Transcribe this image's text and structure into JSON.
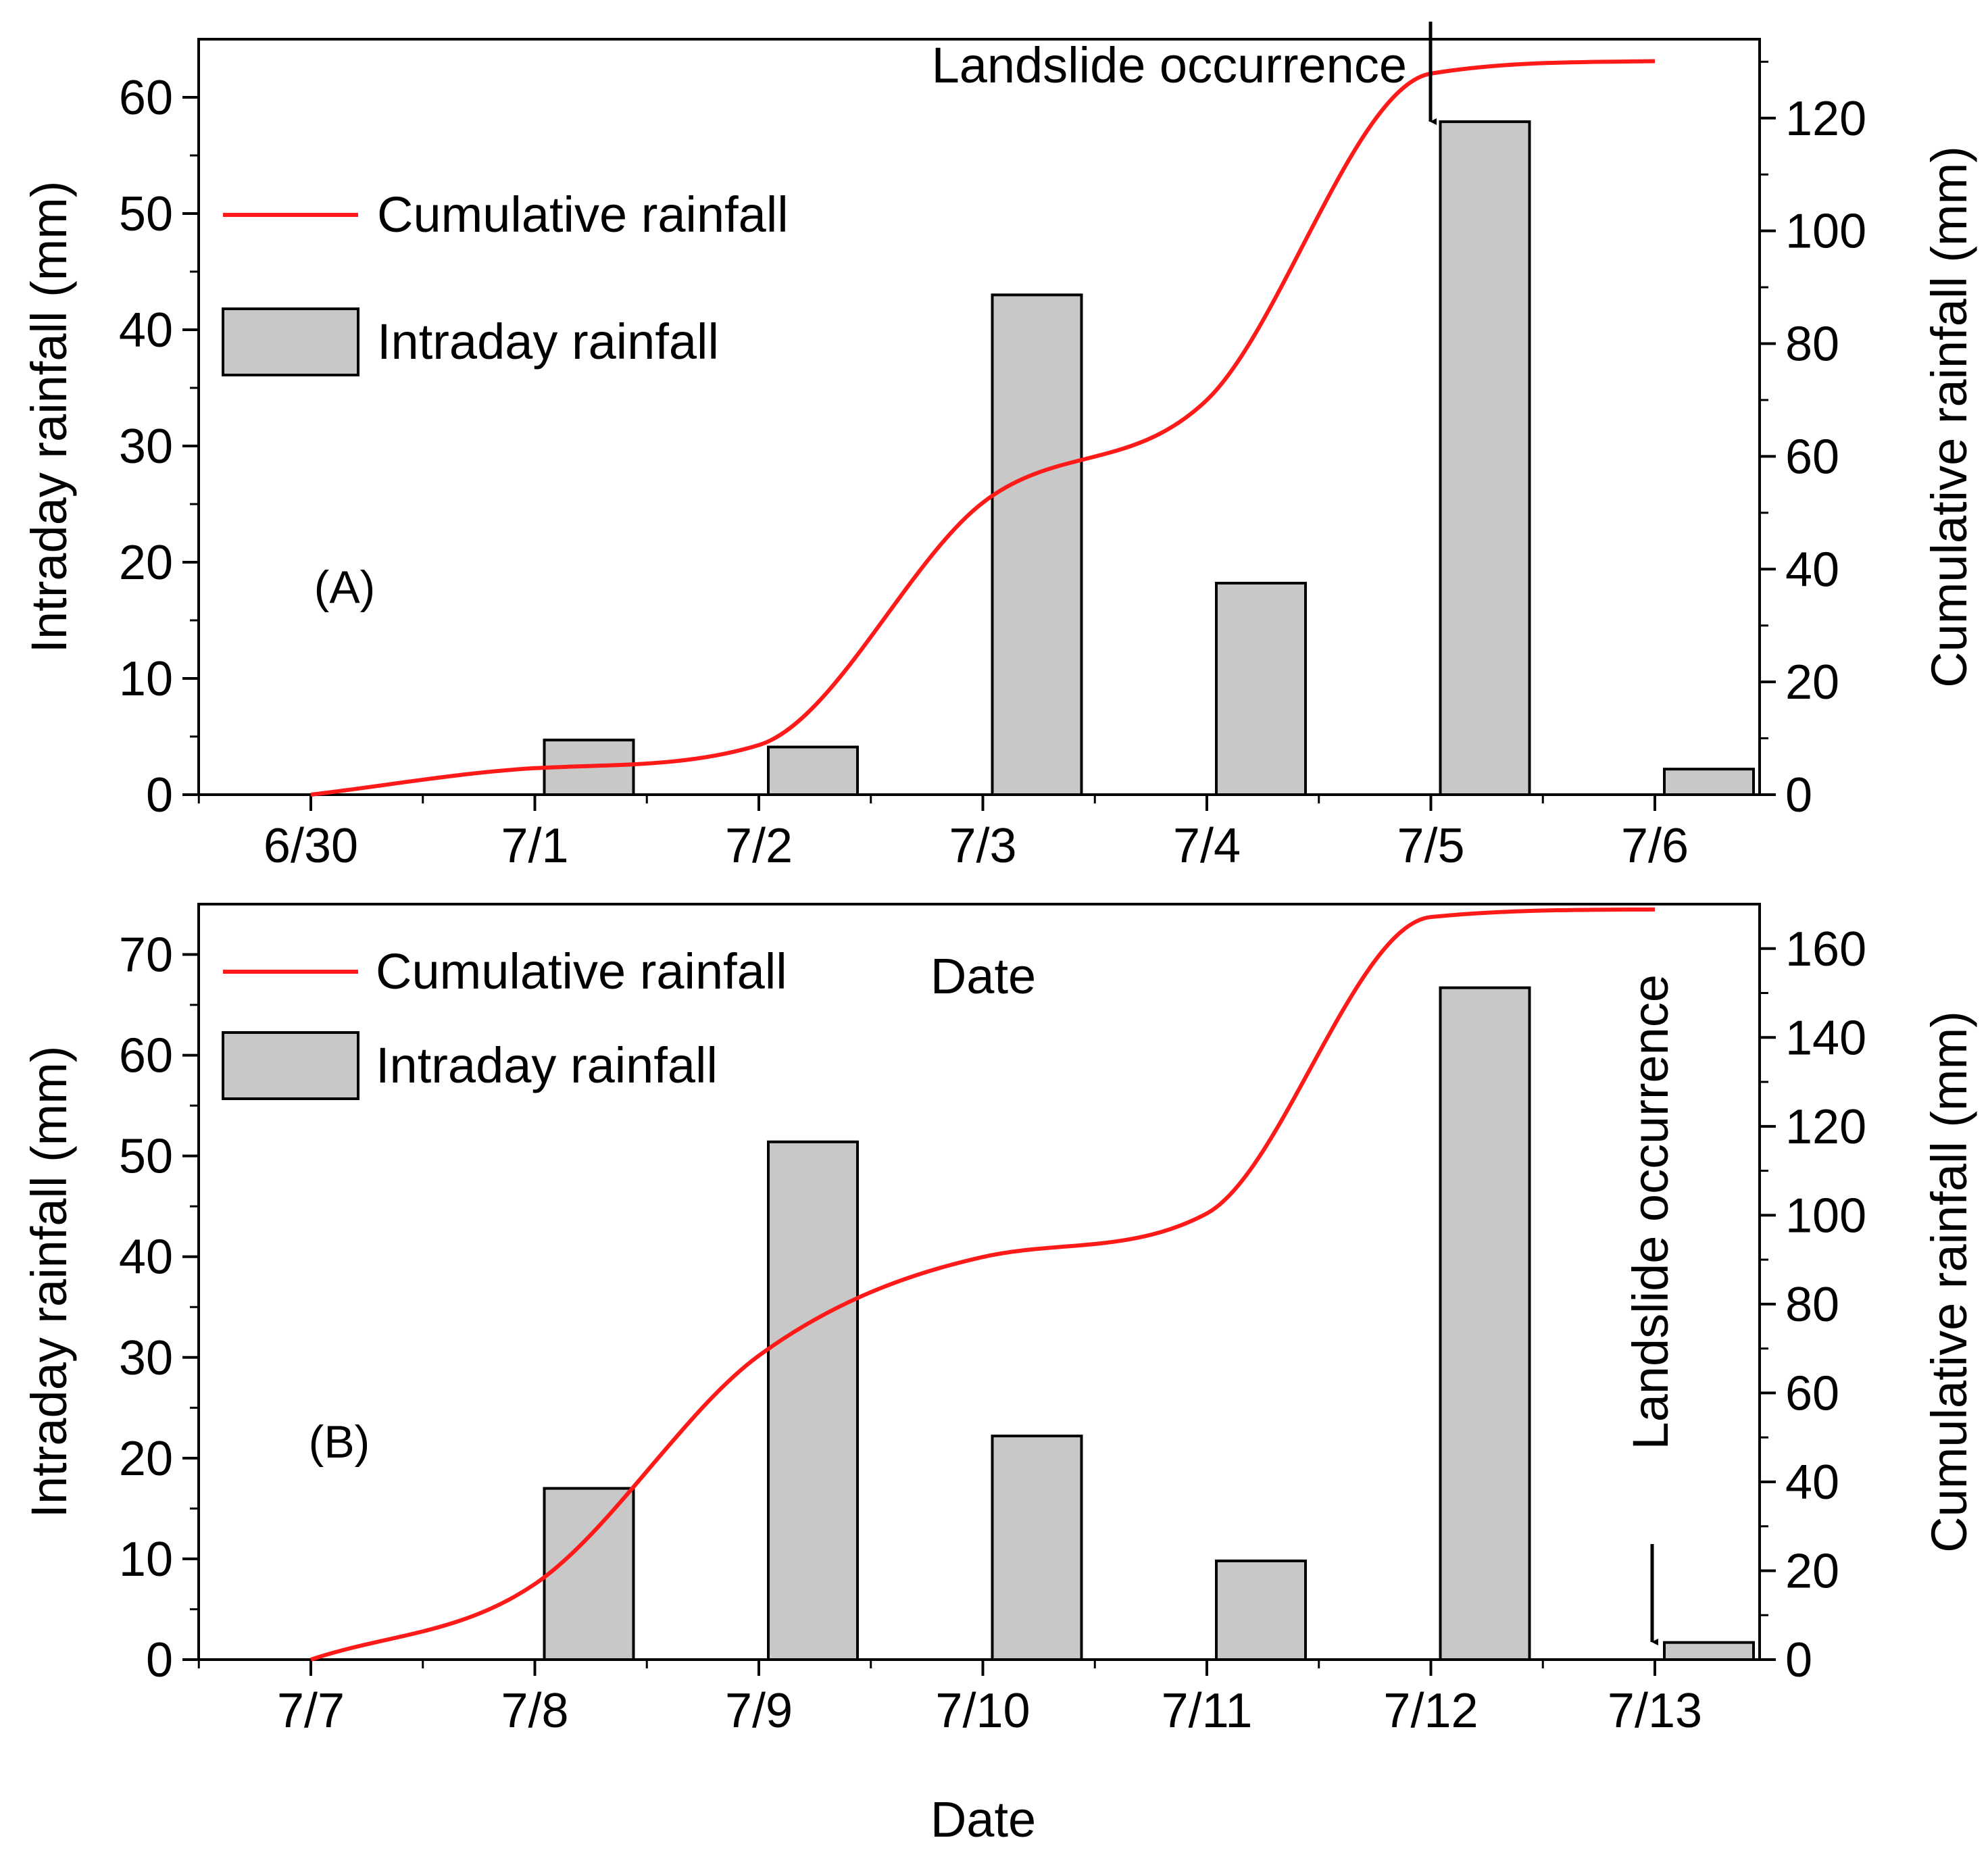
{
  "colors": {
    "bar_fill": "#c8c8c8",
    "bar_stroke": "#000000",
    "line": "#ff1a1a",
    "axis": "#000000"
  },
  "chart_data": [
    {
      "type": "bar+line",
      "panel_label": "(A)",
      "categories": [
        "6/30",
        "7/1",
        "7/2",
        "7/3",
        "7/4",
        "7/5",
        "7/6"
      ],
      "xlabel": "Date",
      "ylabel_left": "Intraday rainfall (mm)",
      "ylabel_right": "Cumulative rainfall (mm)",
      "ylim_left": [
        0,
        65
      ],
      "ylim_right": [
        0,
        134
      ],
      "left_ticks": [
        0,
        10,
        20,
        30,
        40,
        50,
        60
      ],
      "right_ticks": [
        0,
        20,
        40,
        60,
        80,
        100,
        120
      ],
      "series": [
        {
          "name": "Intraday rainfall",
          "kind": "bar",
          "axis": "left",
          "values": [
            0,
            4.7,
            4.1,
            43,
            18.2,
            57.9,
            2.2
          ]
        },
        {
          "name": "Cumulative rainfall",
          "kind": "line",
          "axis": "right",
          "values": [
            0,
            4.7,
            8.8,
            51.8,
            70,
            127.9,
            130.1
          ]
        }
      ],
      "legend": [
        "Cumulative rainfall",
        "Intraday rainfall"
      ],
      "legend_position": "top-left",
      "annotation": {
        "text": "Landslide occurrence",
        "at_category": "7/5",
        "orientation": "horizontal"
      }
    },
    {
      "type": "bar+line",
      "panel_label": "(B)",
      "categories": [
        "7/7",
        "7/8",
        "7/9",
        "7/10",
        "7/11",
        "7/12",
        "7/13"
      ],
      "xlabel": "Date",
      "ylabel_left": "Intraday rainfall (mm)",
      "ylabel_right": "Cumulative rainfall (mm)",
      "ylim_left": [
        0,
        75
      ],
      "ylim_right": [
        0,
        170
      ],
      "left_ticks": [
        0,
        10,
        20,
        30,
        40,
        50,
        60,
        70
      ],
      "right_ticks": [
        0,
        20,
        40,
        60,
        80,
        100,
        120,
        140,
        160
      ],
      "series": [
        {
          "name": "Intraday rainfall",
          "kind": "bar",
          "axis": "left",
          "values": [
            0,
            17,
            51.4,
            22.2,
            9.8,
            66.7,
            1.7
          ]
        },
        {
          "name": "Cumulative rainfall",
          "kind": "line",
          "axis": "right",
          "values": [
            0,
            17,
            68.4,
            90.6,
            100.4,
            167.1,
            168.8
          ]
        }
      ],
      "legend": [
        "Cumulative rainfall",
        "Intraday rainfall"
      ],
      "legend_position": "top-left",
      "stray_label": "Date",
      "annotation": {
        "text": "Landslide occurrence",
        "at_category": "7/13",
        "orientation": "vertical"
      }
    }
  ]
}
